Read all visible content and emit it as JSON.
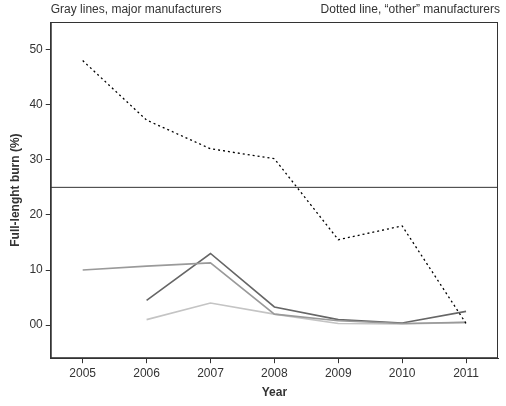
{
  "chart_data": {
    "type": "line",
    "annotations": [
      "Gray lines, major manufacturers",
      "Dotted line, “other” manufacturers"
    ],
    "x_label": "Year",
    "y_label": "Full-lenght burn (%)",
    "categories": [
      "2005",
      "2006",
      "2007",
      "2008",
      "2009",
      "2010",
      "2011"
    ],
    "series": [
      {
        "color": "#000000",
        "line_style": "dotted",
        "values": [
          48,
          37.2,
          32,
          30.2,
          15.5,
          18,
          0.3
        ]
      },
      {
        "color": "#9a9a9a",
        "line_style": "solid",
        "values": [
          10,
          10.7,
          11.3,
          2,
          0.8,
          0.3,
          0.5
        ]
      },
      {
        "color": "#666666",
        "line_style": "solid",
        "values": [
          null,
          4.5,
          13,
          3.3,
          1,
          0.4,
          2.5
        ]
      },
      {
        "color": "#c4c4c4",
        "line_style": "solid",
        "values": [
          null,
          1,
          4,
          2,
          0.3,
          0.2,
          0.5
        ]
      }
    ],
    "ylim": [
      -6,
      55
    ],
    "yticks": [
      {
        "value": 0,
        "label": "00"
      },
      10,
      20,
      30,
      40,
      50
    ],
    "reference_y": 25,
    "grid": false
  }
}
